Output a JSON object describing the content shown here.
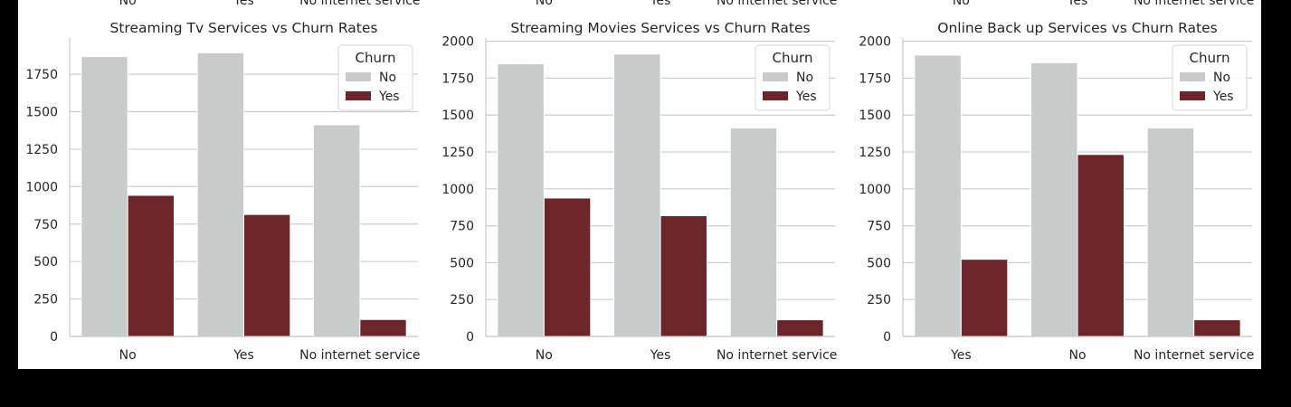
{
  "chart_data": [
    {
      "type": "bar",
      "title": "Streaming Tv Services vs Churn Rates",
      "xlabel": "",
      "ylabel": "",
      "categories": [
        "No",
        "Yes",
        "No internet service"
      ],
      "top_cut_labels": [
        "No",
        "Yes",
        "No internet service"
      ],
      "series": [
        {
          "name": "No",
          "color": "#c7cbca",
          "values": [
            1868,
            1893,
            1413
          ]
        },
        {
          "name": "Yes",
          "color": "#6b252b",
          "values": [
            942,
            814,
            113
          ]
        }
      ],
      "ylim": [
        0,
        1980
      ],
      "yticks": [
        0,
        250,
        500,
        750,
        1000,
        1250,
        1500,
        1750
      ],
      "legend": {
        "title": "Churn",
        "placement": "top-right"
      },
      "grid": "horizontal"
    },
    {
      "type": "bar",
      "title": "Streaming Movies Services vs Churn Rates",
      "xlabel": "",
      "ylabel": "",
      "categories": [
        "No",
        "Yes",
        "No internet service"
      ],
      "top_cut_labels": [
        "No",
        "Yes",
        "No internet service"
      ],
      "series": [
        {
          "name": "No",
          "color": "#c7cbca",
          "values": [
            1847,
            1914,
            1413
          ]
        },
        {
          "name": "Yes",
          "color": "#6b252b",
          "values": [
            938,
            818,
            113
          ]
        }
      ],
      "ylim": [
        0,
        2010
      ],
      "yticks": [
        0,
        250,
        500,
        750,
        1000,
        1250,
        1500,
        1750,
        2000
      ],
      "legend": {
        "title": "Churn",
        "placement": "top-right"
      },
      "grid": "horizontal"
    },
    {
      "type": "bar",
      "title": "Online Back up Services vs Churn Rates",
      "xlabel": "",
      "ylabel": "",
      "categories": [
        "Yes",
        "No",
        "No internet service"
      ],
      "top_cut_labels": [
        "No",
        "Yes",
        "No internet service"
      ],
      "series": [
        {
          "name": "No",
          "color": "#c7cbca",
          "values": [
            1906,
            1855,
            1413
          ]
        },
        {
          "name": "Yes",
          "color": "#6b252b",
          "values": [
            523,
            1233,
            113
          ]
        }
      ],
      "ylim": [
        0,
        2010
      ],
      "yticks": [
        0,
        250,
        500,
        750,
        1000,
        1250,
        1500,
        1750,
        2000
      ],
      "legend": {
        "title": "Churn",
        "placement": "top-right"
      },
      "grid": "horizontal"
    }
  ]
}
